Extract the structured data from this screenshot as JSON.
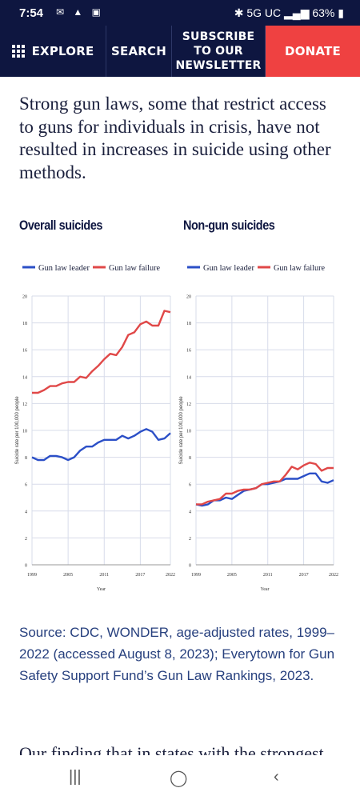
{
  "status_bar": {
    "time": "7:54",
    "network": "5G UC",
    "battery": "63%"
  },
  "nav": {
    "explore": "EXPLORE",
    "search": "SEARCH",
    "newsletter_line1": "SUBSCRIBE",
    "newsletter_line2": "TO OUR",
    "newsletter_line3": "NEWSLETTER",
    "donate": "DONATE"
  },
  "headline": "Strong gun laws, some that restrict access to guns for individuals in crisis, have not resulted in increases in suicide using other methods.",
  "colors": {
    "navy": "#0e1640",
    "donate_red": "#ef4141",
    "leader_blue": "#2b4fc7",
    "failure_red": "#e04848",
    "link_blue": "#27407e"
  },
  "chart_data": [
    {
      "type": "line",
      "title": "Overall suicides",
      "xlabel": "Year",
      "ylabel": "Suicide rate per 100,000 people",
      "ylim": [
        0,
        20
      ],
      "yticks": [
        "0",
        "2",
        "4",
        "6",
        "8",
        "10",
        "12",
        "14",
        "16",
        "18",
        "20"
      ],
      "xticks": [
        "1999",
        "2005",
        "2011",
        "2017",
        "2022"
      ],
      "grid": true,
      "legend": "top",
      "x": [
        1999,
        2000,
        2001,
        2002,
        2003,
        2004,
        2005,
        2006,
        2007,
        2008,
        2009,
        2010,
        2011,
        2012,
        2013,
        2014,
        2015,
        2016,
        2017,
        2018,
        2019,
        2020,
        2021,
        2022
      ],
      "series": [
        {
          "name": "Gun law leader",
          "color": "#2b4fc7",
          "values": [
            8.0,
            7.8,
            7.8,
            8.1,
            8.1,
            8.0,
            7.8,
            8.0,
            8.5,
            8.8,
            8.8,
            9.1,
            9.3,
            9.3,
            9.3,
            9.6,
            9.4,
            9.6,
            9.9,
            10.1,
            9.9,
            9.3,
            9.4,
            9.8
          ]
        },
        {
          "name": "Gun law failure",
          "color": "#e04848",
          "values": [
            12.8,
            12.8,
            13.0,
            13.3,
            13.3,
            13.5,
            13.6,
            13.6,
            14.0,
            13.9,
            14.4,
            14.8,
            15.3,
            15.7,
            15.6,
            16.2,
            17.1,
            17.3,
            17.9,
            18.1,
            17.8,
            17.8,
            18.9,
            18.8
          ]
        }
      ]
    },
    {
      "type": "line",
      "title": "Non-gun suicides",
      "xlabel": "Year",
      "ylabel": "Suicide rate per 100,000 people",
      "ylim": [
        0,
        20
      ],
      "yticks": [
        "0",
        "2",
        "4",
        "6",
        "8",
        "10",
        "12",
        "14",
        "16",
        "18",
        "20"
      ],
      "xticks": [
        "1999",
        "2005",
        "2011",
        "2017",
        "2022"
      ],
      "grid": true,
      "legend": "top",
      "x": [
        1999,
        2000,
        2001,
        2002,
        2003,
        2004,
        2005,
        2006,
        2007,
        2008,
        2009,
        2010,
        2011,
        2012,
        2013,
        2014,
        2015,
        2016,
        2017,
        2018,
        2019,
        2020,
        2021,
        2022
      ],
      "series": [
        {
          "name": "Gun law leader",
          "color": "#2b4fc7",
          "values": [
            4.5,
            4.4,
            4.5,
            4.8,
            4.8,
            5.0,
            4.9,
            5.2,
            5.5,
            5.6,
            5.7,
            6.0,
            6.0,
            6.1,
            6.2,
            6.4,
            6.4,
            6.4,
            6.6,
            6.8,
            6.8,
            6.2,
            6.1,
            6.3
          ]
        },
        {
          "name": "Gun law failure",
          "color": "#e04848",
          "values": [
            4.5,
            4.5,
            4.7,
            4.8,
            4.9,
            5.3,
            5.3,
            5.5,
            5.6,
            5.6,
            5.7,
            6.0,
            6.1,
            6.2,
            6.2,
            6.7,
            7.3,
            7.1,
            7.4,
            7.6,
            7.5,
            7.0,
            7.2,
            7.2
          ]
        }
      ]
    }
  ],
  "source_text": "Source: CDC, WONDER, age-adjusted rates, 1999–2022 (accessed August 8, 2023); Everytown for Gun Safety Support Fund’s Gun Law Rankings, 2023.",
  "next_paragraph": "Our finding that in states with the strongest"
}
